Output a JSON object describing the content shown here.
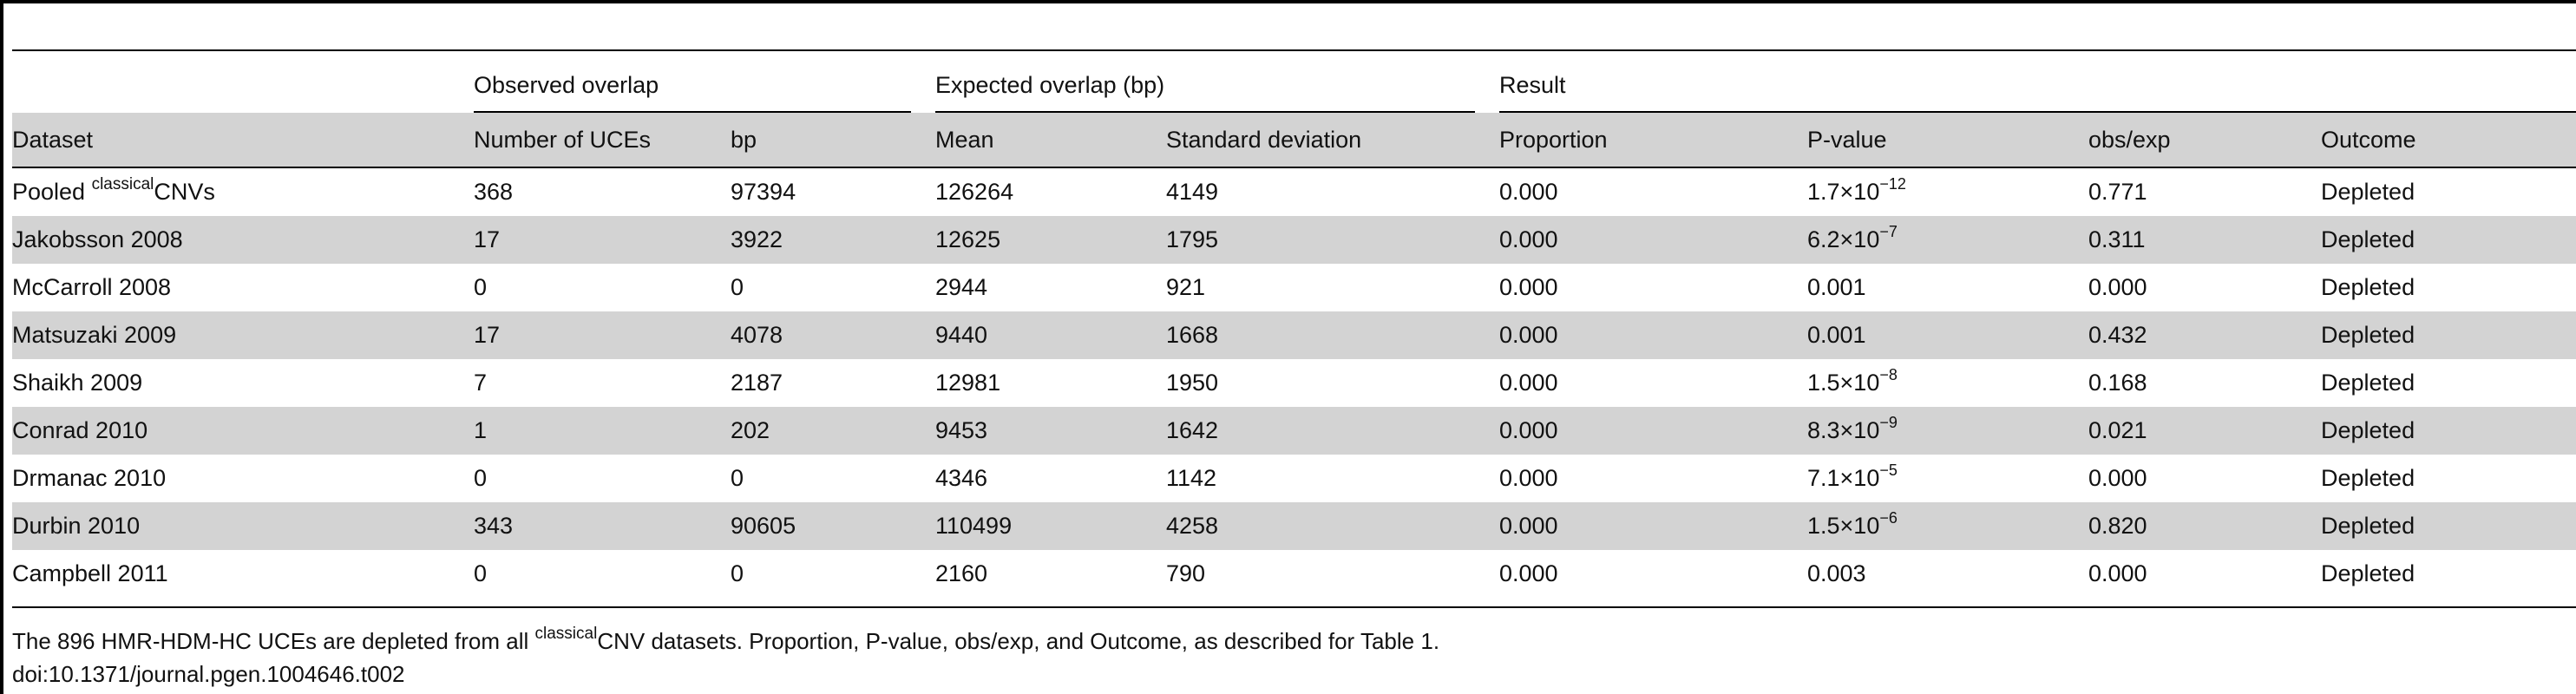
{
  "table": {
    "group_headers": {
      "observed": "Observed overlap",
      "expected": "Expected overlap (bp)",
      "result": "Result"
    },
    "columns": [
      "Dataset",
      "Number of UCEs",
      "bp",
      "Mean",
      "Standard deviation",
      "Proportion",
      "P-value",
      "obs/exp",
      "Outcome"
    ],
    "rows": [
      {
        "dataset_pre": "Pooled ",
        "dataset_sup": "classical",
        "dataset_post": "CNVs",
        "n_uces": "368",
        "bp": "97394",
        "mean": "126264",
        "sd": "4149",
        "proportion": "0.000",
        "pvalue_base": "1.7×10",
        "pvalue_exp": "−12",
        "obsexp": "0.771",
        "outcome": "Depleted"
      },
      {
        "dataset_pre": "Jakobsson 2008",
        "dataset_sup": "",
        "dataset_post": "",
        "n_uces": "17",
        "bp": "3922",
        "mean": "12625",
        "sd": "1795",
        "proportion": "0.000",
        "pvalue_base": "6.2×10",
        "pvalue_exp": "−7",
        "obsexp": "0.311",
        "outcome": "Depleted"
      },
      {
        "dataset_pre": "McCarroll 2008",
        "dataset_sup": "",
        "dataset_post": "",
        "n_uces": "0",
        "bp": "0",
        "mean": "2944",
        "sd": "921",
        "proportion": "0.000",
        "pvalue_base": "0.001",
        "pvalue_exp": "",
        "obsexp": "0.000",
        "outcome": "Depleted"
      },
      {
        "dataset_pre": "Matsuzaki 2009",
        "dataset_sup": "",
        "dataset_post": "",
        "n_uces": "17",
        "bp": "4078",
        "mean": "9440",
        "sd": "1668",
        "proportion": "0.000",
        "pvalue_base": "0.001",
        "pvalue_exp": "",
        "obsexp": "0.432",
        "outcome": "Depleted"
      },
      {
        "dataset_pre": "Shaikh 2009",
        "dataset_sup": "",
        "dataset_post": "",
        "n_uces": "7",
        "bp": "2187",
        "mean": "12981",
        "sd": "1950",
        "proportion": "0.000",
        "pvalue_base": "1.5×10",
        "pvalue_exp": "−8",
        "obsexp": "0.168",
        "outcome": "Depleted"
      },
      {
        "dataset_pre": "Conrad 2010",
        "dataset_sup": "",
        "dataset_post": "",
        "n_uces": "1",
        "bp": "202",
        "mean": "9453",
        "sd": "1642",
        "proportion": "0.000",
        "pvalue_base": "8.3×10",
        "pvalue_exp": "−9",
        "obsexp": "0.021",
        "outcome": "Depleted"
      },
      {
        "dataset_pre": "Drmanac 2010",
        "dataset_sup": "",
        "dataset_post": "",
        "n_uces": "0",
        "bp": "0",
        "mean": "4346",
        "sd": "1142",
        "proportion": "0.000",
        "pvalue_base": "7.1×10",
        "pvalue_exp": "−5",
        "obsexp": "0.000",
        "outcome": "Depleted"
      },
      {
        "dataset_pre": "Durbin 2010",
        "dataset_sup": "",
        "dataset_post": "",
        "n_uces": "343",
        "bp": "90605",
        "mean": "110499",
        "sd": "4258",
        "proportion": "0.000",
        "pvalue_base": "1.5×10",
        "pvalue_exp": "−6",
        "obsexp": "0.820",
        "outcome": "Depleted"
      },
      {
        "dataset_pre": "Campbell 2011",
        "dataset_sup": "",
        "dataset_post": "",
        "n_uces": "0",
        "bp": "0",
        "mean": "2160",
        "sd": "790",
        "proportion": "0.000",
        "pvalue_base": "0.003",
        "pvalue_exp": "",
        "obsexp": "0.000",
        "outcome": "Depleted"
      }
    ]
  },
  "footnote": {
    "pre": "The 896 HMR-HDM-HC UCEs are depleted from all ",
    "sup": "classical",
    "post": "CNV datasets. Proportion, P-value, obs/exp, and Outcome, as described for Table 1."
  },
  "doi": "doi:10.1371/journal.pgen.1004646.t002"
}
